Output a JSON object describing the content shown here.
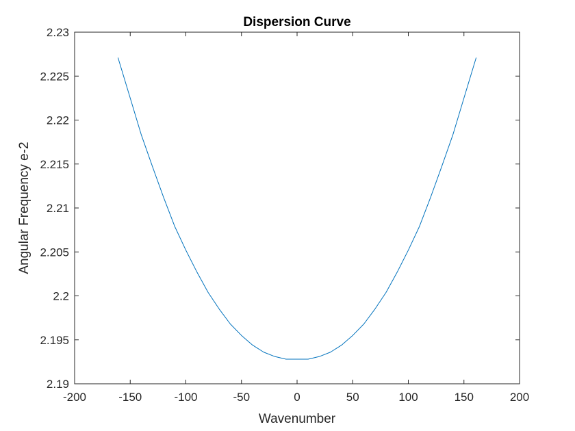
{
  "chart_data": {
    "type": "line",
    "title": "Dispersion Curve",
    "xlabel": "Wavenumber",
    "ylabel": "Angular Frequency e-2",
    "xlim": [
      -200,
      200
    ],
    "ylim": [
      2.19,
      2.23
    ],
    "xticks": [
      -200,
      -150,
      -100,
      -50,
      0,
      50,
      100,
      150,
      200
    ],
    "xtick_labels": [
      "-200",
      "-150",
      "-100",
      "-50",
      "0",
      "50",
      "100",
      "150",
      "200"
    ],
    "yticks": [
      2.19,
      2.195,
      2.2,
      2.205,
      2.21,
      2.215,
      2.22,
      2.225,
      2.23
    ],
    "ytick_labels": [
      "2.19",
      "2.195",
      "2.2",
      "2.205",
      "2.21",
      "2.215",
      "2.22",
      "2.225",
      "2.23"
    ],
    "grid": false,
    "series": [
      {
        "color": "#0072BD",
        "x": [
          -161,
          -150,
          -140,
          -130,
          -120,
          -110,
          -100,
          -90,
          -80,
          -70,
          -60,
          -50,
          -40,
          -30,
          -20,
          -10,
          0,
          10,
          20,
          30,
          40,
          50,
          60,
          70,
          80,
          90,
          100,
          110,
          120,
          130,
          140,
          150,
          161
        ],
        "y": [
          2.2271,
          2.2225,
          2.2183,
          2.2147,
          2.2112,
          2.2079,
          2.2052,
          2.2027,
          2.2004,
          2.1985,
          2.1968,
          2.1955,
          2.1944,
          2.1936,
          2.1931,
          2.1928,
          2.1928,
          2.1928,
          2.1931,
          2.1936,
          2.1944,
          2.1955,
          2.1968,
          2.1985,
          2.2004,
          2.2027,
          2.2052,
          2.2079,
          2.2112,
          2.2147,
          2.2183,
          2.2225,
          2.2271
        ]
      }
    ]
  },
  "colors": {
    "axis": "#262626",
    "background": "#ffffff",
    "line": "#0072BD"
  }
}
